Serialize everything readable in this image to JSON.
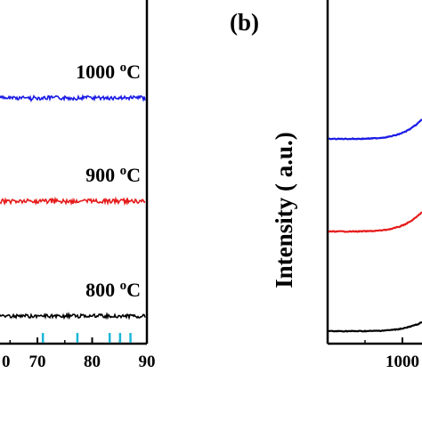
{
  "chart_data": [
    {
      "panel_label": "",
      "type": "line",
      "xlabel": "",
      "ylabel": "",
      "xlim": [
        63,
        90
      ],
      "x_ticks": [
        "70",
        "80",
        "90"
      ],
      "x_tick_values": [
        70,
        80,
        90
      ],
      "extra_tick_label": "0",
      "extra_tick_value": 60,
      "reference_tick_color": "#1bb7d6",
      "reference_ticks": [
        71,
        77.3,
        83.2,
        85.1,
        87
      ],
      "series": [
        {
          "label": "1000 °C",
          "label_main": "1000 ",
          "label_deg": "o",
          "label_unit": "C",
          "color": "#1a1ae6",
          "baseline": 110,
          "noise": 2.2
        },
        {
          "label": "900 °C",
          "label_main": "900 ",
          "label_deg": "o",
          "label_unit": "C",
          "color": "#e61a1a",
          "baseline": 226,
          "noise": 2.6
        },
        {
          "label": "800 °C",
          "label_main": "800 ",
          "label_deg": "o",
          "label_unit": "C",
          "color": "#000000",
          "baseline": 355,
          "noise": 2.0
        }
      ]
    },
    {
      "panel_label": "(b)",
      "type": "line",
      "xlabel": "",
      "ylabel": "Intensity ( a.u.)",
      "x_ticks": [
        "1000"
      ],
      "series": [
        {
          "color": "#1a1ae6",
          "baseline": 156
        },
        {
          "color": "#e61a1a",
          "baseline": 260
        },
        {
          "color": "#000000",
          "baseline": 372
        }
      ]
    }
  ]
}
